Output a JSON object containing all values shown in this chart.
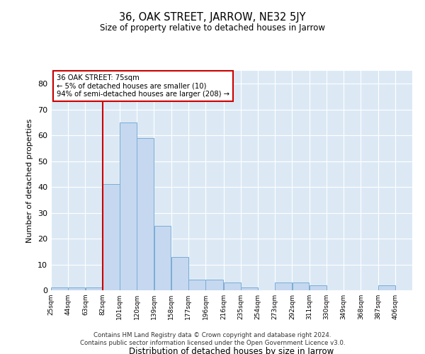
{
  "title": "36, OAK STREET, JARROW, NE32 5JY",
  "subtitle": "Size of property relative to detached houses in Jarrow",
  "xlabel": "Distribution of detached houses by size in Jarrow",
  "ylabel": "Number of detached properties",
  "bin_labels": [
    "25sqm",
    "44sqm",
    "63sqm",
    "82sqm",
    "101sqm",
    "120sqm",
    "139sqm",
    "158sqm",
    "177sqm",
    "196sqm",
    "216sqm",
    "235sqm",
    "254sqm",
    "273sqm",
    "292sqm",
    "311sqm",
    "330sqm",
    "349sqm",
    "368sqm",
    "387sqm",
    "406sqm"
  ],
  "bar_heights": [
    1,
    1,
    1,
    41,
    65,
    59,
    25,
    13,
    4,
    4,
    3,
    1,
    0,
    3,
    3,
    2,
    0,
    0,
    0,
    2,
    0
  ],
  "bar_color": "#c5d8f0",
  "bar_edgecolor": "#7aadd4",
  "vline_color": "#cc0000",
  "annotation_text": "36 OAK STREET: 75sqm\n← 5% of detached houses are smaller (10)\n94% of semi-detached houses are larger (208) →",
  "annotation_box_color": "#ffffff",
  "annotation_box_edgecolor": "#cc0000",
  "ylim": [
    0,
    85
  ],
  "yticks": [
    0,
    10,
    20,
    30,
    40,
    50,
    60,
    70,
    80
  ],
  "footer1": "Contains HM Land Registry data © Crown copyright and database right 2024.",
  "footer2": "Contains public sector information licensed under the Open Government Licence v3.0.",
  "plot_bg_color": "#dce9f5",
  "grid_color": "#ffffff",
  "bin_edges": [
    25,
    44,
    63,
    82,
    101,
    120,
    139,
    158,
    177,
    196,
    216,
    235,
    254,
    273,
    292,
    311,
    330,
    349,
    368,
    387,
    406,
    425
  ]
}
